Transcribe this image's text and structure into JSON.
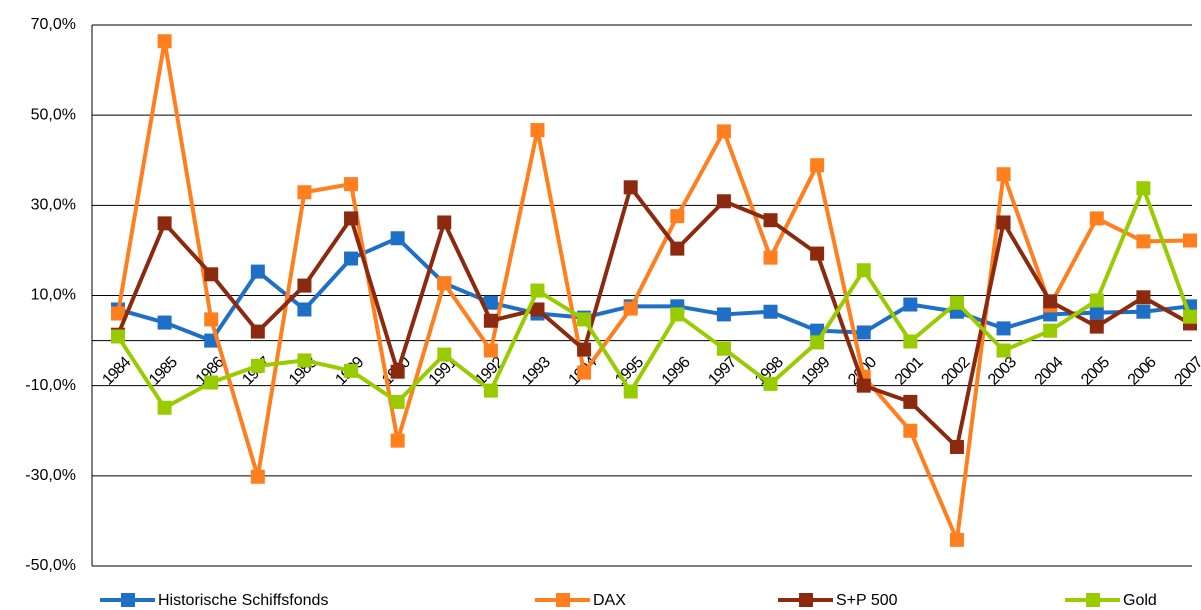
{
  "chart_data": {
    "type": "line",
    "categories": [
      "1984",
      "1985",
      "1986",
      "1987",
      "1988",
      "1989",
      "1990",
      "1991",
      "1992",
      "1993",
      "1994",
      "1995",
      "1996",
      "1997",
      "1998",
      "1999",
      "2000",
      "2001",
      "2002",
      "2003",
      "2004",
      "2005",
      "2006",
      "2007"
    ],
    "series": [
      {
        "name": "Historische Schiffsfonds",
        "color": "#1f6fc6",
        "values": [
          6.9,
          4,
          0,
          15.3,
          6.9,
          18.2,
          22.7,
          12.7,
          8.4,
          6,
          5.1,
          7.6,
          7.6,
          5.8,
          6.4,
          2.2,
          1.8,
          8,
          6.4,
          2.7,
          5.8,
          6.2,
          6.4,
          7.6
        ]
      },
      {
        "name": "DAX",
        "color": "#ff7f1e",
        "values": [
          6,
          66.4,
          4.7,
          -30.2,
          32.9,
          34.7,
          -22.2,
          12.7,
          -2.2,
          46.7,
          -7.1,
          7.1,
          27.6,
          46.4,
          18.4,
          38.9,
          -8,
          -20,
          -44.2,
          36.9,
          7.8,
          27.1,
          22,
          22.2
        ]
      },
      {
        "name": "S+P 500",
        "color": "#8b2a0e",
        "values": [
          1.3,
          26,
          14.7,
          2,
          12.2,
          27.1,
          -6.9,
          26.2,
          4.4,
          6.9,
          -2,
          34,
          20.4,
          30.9,
          26.7,
          19.3,
          -10,
          -13.6,
          -23.6,
          26.2,
          8.7,
          3.1,
          9.6,
          3.8
        ]
      },
      {
        "name": "Gold",
        "color": "#99cc00",
        "values": [
          0.9,
          -14.9,
          -9.3,
          -5.6,
          -4.4,
          -6.7,
          -13.6,
          -3.1,
          -11.1,
          11.1,
          4.7,
          -11.3,
          5.8,
          -1.8,
          -9.6,
          -0.4,
          15.6,
          -0.2,
          8.4,
          -2.2,
          2.2,
          8.9,
          33.8,
          5.3
        ]
      }
    ],
    "ylim": [
      -50,
      70
    ],
    "yticks": [
      {
        "value": -50,
        "label": "-50,0%"
      },
      {
        "value": -30,
        "label": "-30,0%"
      },
      {
        "value": -10,
        "label": "-10,0%"
      },
      {
        "value": 10,
        "label": "10,0%"
      },
      {
        "value": 30,
        "label": "30,0%"
      },
      {
        "value": 50,
        "label": "50,0%"
      },
      {
        "value": 70,
        "label": "70,0%"
      }
    ],
    "grid": true,
    "legend": "bottom"
  }
}
